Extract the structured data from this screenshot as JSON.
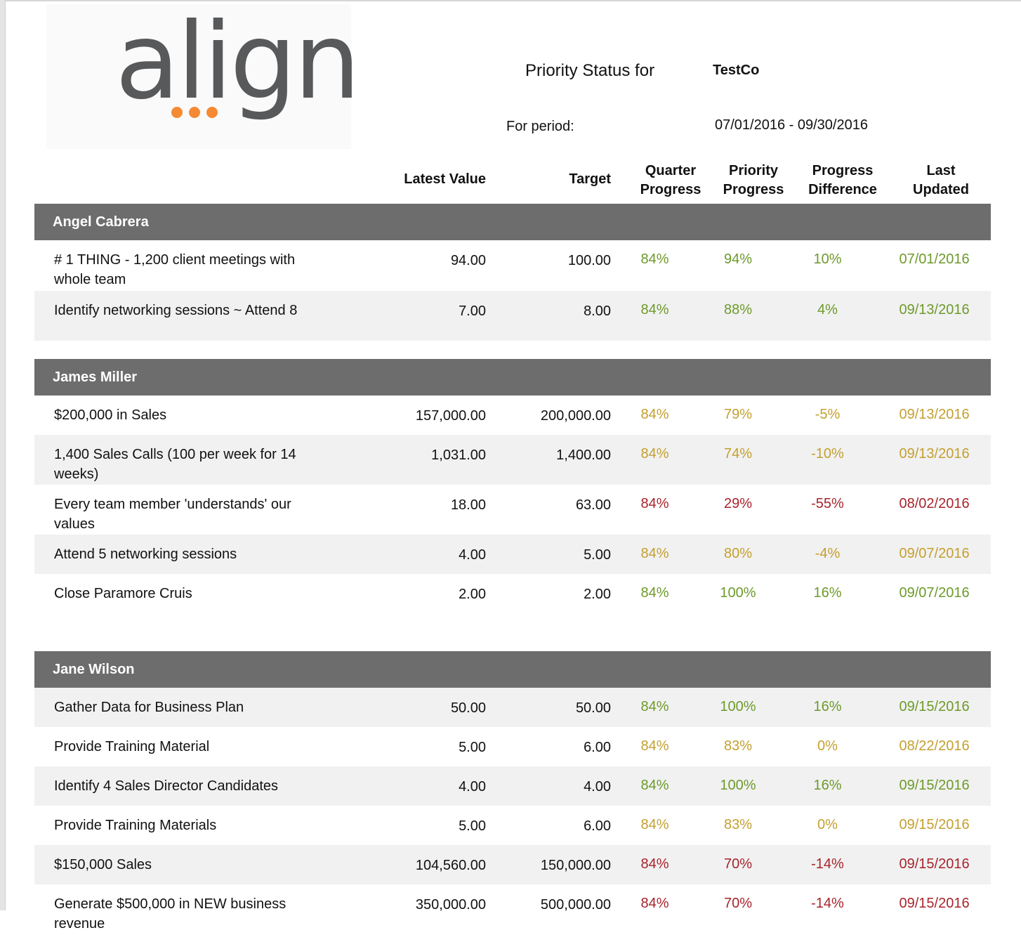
{
  "logo": {
    "text": "align"
  },
  "header": {
    "title_label": "Priority Status for",
    "company": "TestCo",
    "period_label": "For period:",
    "period_value": "07/01/2016 - 09/30/2016"
  },
  "columns": {
    "latest_value": "Latest Value",
    "target": "Target",
    "quarter_progress": "Quarter Progress",
    "priority_progress": "Priority Progress",
    "progress_difference": "Progress Difference",
    "last_updated": "Last Updated"
  },
  "status_colors": {
    "green": "#6e9a2a",
    "amber": "#c4a030",
    "red": "#a8242c"
  },
  "groups": [
    {
      "name": "Angel Cabrera",
      "rows": [
        {
          "desc": "# 1 THING - 1,200 client meetings with whole team",
          "latest": "94.00",
          "target": "100.00",
          "qp": "84%",
          "pp": "94%",
          "diff": "10%",
          "updated": "07/01/2016",
          "status": "green"
        },
        {
          "desc": "Identify networking sessions ~ Attend 8",
          "latest": "7.00",
          "target": "8.00",
          "qp": "84%",
          "pp": "88%",
          "diff": "4%",
          "updated": "09/13/2016",
          "status": "green"
        }
      ]
    },
    {
      "name": "James Miller",
      "rows": [
        {
          "desc": "$200,000 in Sales",
          "latest": "157,000.00",
          "target": "200,000.00",
          "qp": "84%",
          "pp": "79%",
          "diff": "-5%",
          "updated": "09/13/2016",
          "status": "amber"
        },
        {
          "desc": "1,400 Sales Calls (100 per week for 14 weeks)",
          "latest": "1,031.00",
          "target": "1,400.00",
          "qp": "84%",
          "pp": "74%",
          "diff": "-10%",
          "updated": "09/13/2016",
          "status": "amber"
        },
        {
          "desc": "Every team member 'understands' our values",
          "latest": "18.00",
          "target": "63.00",
          "qp": "84%",
          "pp": "29%",
          "diff": "-55%",
          "updated": "08/02/2016",
          "status": "red"
        },
        {
          "desc": "Attend 5 networking sessions",
          "latest": "4.00",
          "target": "5.00",
          "qp": "84%",
          "pp": "80%",
          "diff": "-4%",
          "updated": "09/07/2016",
          "status": "amber"
        },
        {
          "desc": "Close Paramore Cruis",
          "latest": "2.00",
          "target": "2.00",
          "qp": "84%",
          "pp": "100%",
          "diff": "16%",
          "updated": "09/07/2016",
          "status": "green"
        }
      ]
    },
    {
      "name": "Jane Wilson",
      "rows": [
        {
          "desc": "Gather Data for Business Plan",
          "latest": "50.00",
          "target": "50.00",
          "qp": "84%",
          "pp": "100%",
          "diff": "16%",
          "updated": "09/15/2016",
          "status": "green"
        },
        {
          "desc": "Provide Training Material",
          "latest": "5.00",
          "target": "6.00",
          "qp": "84%",
          "pp": "83%",
          "diff": "0%",
          "updated": "08/22/2016",
          "status": "amber"
        },
        {
          "desc": "Identify 4 Sales Director Candidates",
          "latest": "4.00",
          "target": "4.00",
          "qp": "84%",
          "pp": "100%",
          "diff": "16%",
          "updated": "09/15/2016",
          "status": "green"
        },
        {
          "desc": "Provide Training Materials",
          "latest": "5.00",
          "target": "6.00",
          "qp": "84%",
          "pp": "83%",
          "diff": "0%",
          "updated": "09/15/2016",
          "status": "amber"
        },
        {
          "desc": "$150,000 Sales",
          "latest": "104,560.00",
          "target": "150,000.00",
          "qp": "84%",
          "pp": "70%",
          "diff": "-14%",
          "updated": "09/15/2016",
          "status": "red"
        },
        {
          "desc": "Generate $500,000 in NEW business revenue",
          "latest": "350,000.00",
          "target": "500,000.00",
          "qp": "84%",
          "pp": "70%",
          "diff": "-14%",
          "updated": "09/15/2016",
          "status": "red"
        }
      ]
    }
  ]
}
